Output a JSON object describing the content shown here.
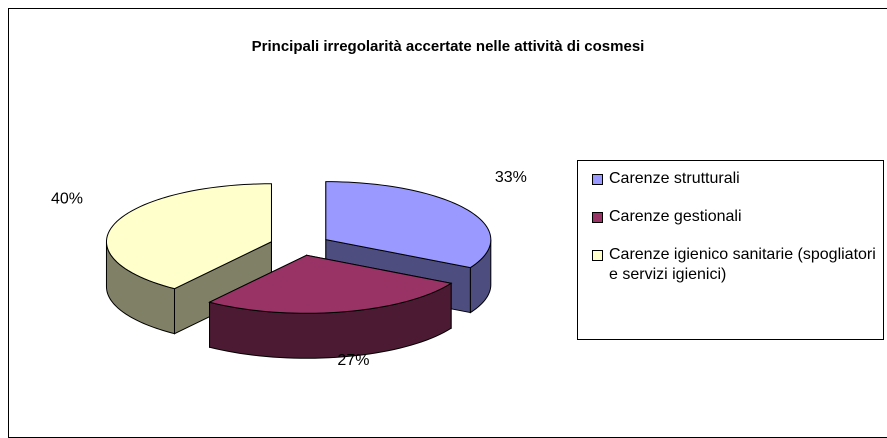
{
  "chart_data": {
    "type": "pie",
    "style": "3d-exploded",
    "title": "Principali irregolarità accertate nelle attività di cosmesi",
    "categories": [
      "Carenze strutturali",
      "Carenze gestionali",
      "Carenze igienico sanitarie (spogliatori e servizi igienici)"
    ],
    "values": [
      33,
      27,
      40
    ],
    "value_labels": [
      "33%",
      "27%",
      "40%"
    ],
    "colors": [
      "#9999ff",
      "#993366",
      "#ffffcc"
    ],
    "legend": "right"
  }
}
